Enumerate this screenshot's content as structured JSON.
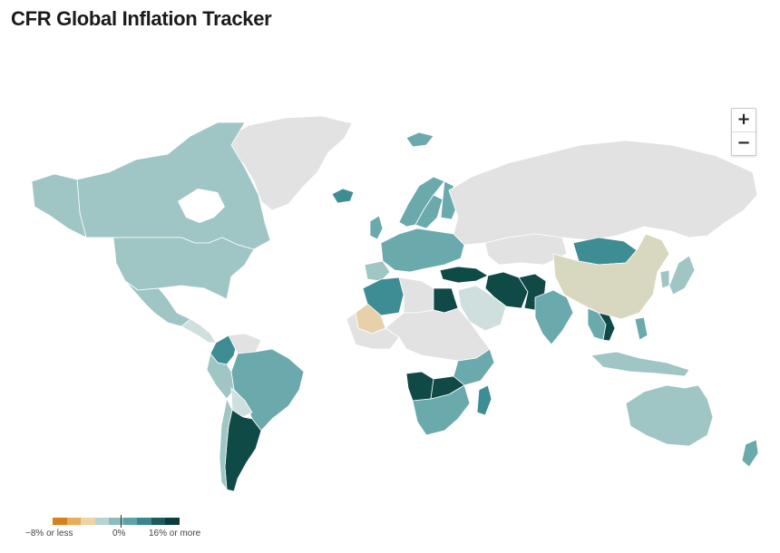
{
  "title": "CFR Global Inflation Tracker",
  "zoom": {
    "in_label": "+",
    "out_label": "−"
  },
  "legend": {
    "min_label": "−8% or less",
    "zero_label": "0%",
    "max_label": "16% or more",
    "colors": [
      "#d97f1d",
      "#e7ad59",
      "#f0d3a5",
      "#b6d3d2",
      "#8cbdbd",
      "#5fa3a8",
      "#3a8690",
      "#1b5b5c",
      "#0c3d3b"
    ]
  },
  "colors": {
    "no_data": "#e2e2e2",
    "ocean": "#ffffff",
    "very_low": "#cfdfdd",
    "low": "#9fc6c4",
    "mid": "#6aa9ac",
    "high": "#3e8c94",
    "very_high": "#0f4a47",
    "deflation": "#e7d1a8",
    "china": "#d8d8c0"
  },
  "map_data": {
    "scale": "inflation rate, −8% or less to 16% or more",
    "countries": [
      {
        "name": "Canada",
        "color": "low"
      },
      {
        "name": "United States",
        "color": "low"
      },
      {
        "name": "Alaska",
        "color": "low"
      },
      {
        "name": "Mexico",
        "color": "low"
      },
      {
        "name": "Greenland",
        "color": "no_data"
      },
      {
        "name": "Brazil",
        "color": "mid"
      },
      {
        "name": "Argentina",
        "color": "very_high"
      },
      {
        "name": "Colombia",
        "color": "high"
      },
      {
        "name": "Venezuela",
        "color": "no_data"
      },
      {
        "name": "Peru",
        "color": "low"
      },
      {
        "name": "Bolivia",
        "color": "very_low"
      },
      {
        "name": "Russia",
        "color": "no_data"
      },
      {
        "name": "China",
        "color": "china"
      },
      {
        "name": "Mongolia",
        "color": "high"
      },
      {
        "name": "Kazakhstan",
        "color": "no_data"
      },
      {
        "name": "India",
        "color": "mid"
      },
      {
        "name": "Iran",
        "color": "very_high"
      },
      {
        "name": "Turkey",
        "color": "very_high"
      },
      {
        "name": "Pakistan",
        "color": "very_high"
      },
      {
        "name": "Saudi Arabia",
        "color": "very_low"
      },
      {
        "name": "Egypt",
        "color": "very_high"
      },
      {
        "name": "Algeria",
        "color": "high"
      },
      {
        "name": "Libya",
        "color": "no_data"
      },
      {
        "name": "Mali",
        "color": "deflation"
      },
      {
        "name": "Angola",
        "color": "very_high"
      },
      {
        "name": "Madagascar",
        "color": "high"
      },
      {
        "name": "South Africa",
        "color": "mid"
      },
      {
        "name": "Australia",
        "color": "low"
      },
      {
        "name": "New Zealand",
        "color": "mid"
      },
      {
        "name": "Iceland",
        "color": "high"
      },
      {
        "name": "Norway",
        "color": "mid"
      },
      {
        "name": "Sweden",
        "color": "mid"
      },
      {
        "name": "Finland",
        "color": "mid"
      },
      {
        "name": "Laos",
        "color": "very_high"
      },
      {
        "name": "Japan",
        "color": "low"
      },
      {
        "name": "Indonesia",
        "color": "low"
      }
    ]
  }
}
